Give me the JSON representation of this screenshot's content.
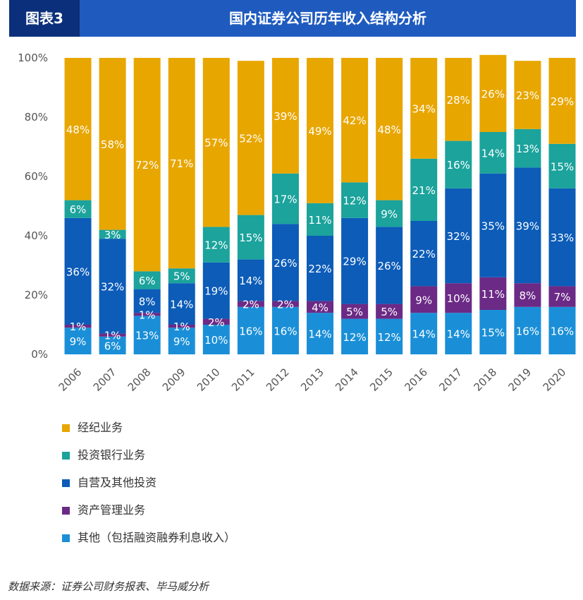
{
  "header": {
    "badge": "图表3",
    "title": "国内证券公司历年收入结构分析"
  },
  "source": "数据来源：证券公司财务报表、毕马威分析",
  "chart_data": {
    "type": "bar",
    "stacked": true,
    "categories": [
      "2006",
      "2007",
      "2008",
      "2009",
      "2010",
      "2011",
      "2012",
      "2013",
      "2014",
      "2015",
      "2016",
      "2017",
      "2018",
      "2019",
      "2020"
    ],
    "ylim": [
      0,
      100
    ],
    "yticks": [
      "0%",
      "20%",
      "40%",
      "60%",
      "80%",
      "100%"
    ],
    "grid": false,
    "legend_position": "bottom",
    "series": [
      {
        "name": "其他（包括融资融券利息收入）",
        "color": "#1a8fd8",
        "values": [
          9,
          6,
          13,
          9,
          10,
          16,
          16,
          14,
          12,
          12,
          14,
          14,
          15,
          16,
          16
        ],
        "labels": [
          "9%",
          "6%",
          "13%",
          "9%",
          "10%",
          "16%",
          "16%",
          "14%",
          "12%",
          "12%",
          "14%",
          "14%",
          "15%",
          "16%",
          "16%"
        ]
      },
      {
        "name": "资产管理业务",
        "color": "#6b2a86",
        "values": [
          1,
          1,
          1,
          1,
          2,
          2,
          2,
          4,
          5,
          5,
          9,
          10,
          11,
          8,
          7
        ],
        "labels": [
          "1%",
          "1%",
          "1%",
          "1%",
          "2%",
          "2%",
          "2%",
          "4%",
          "5%",
          "5%",
          "9%",
          "10%",
          "11%",
          "8%",
          "7%"
        ]
      },
      {
        "name": "自营及其他投资",
        "color": "#0c5cb8",
        "values": [
          36,
          32,
          8,
          14,
          19,
          14,
          26,
          22,
          29,
          26,
          22,
          32,
          35,
          39,
          33
        ],
        "labels": [
          "36%",
          "32%",
          "8%",
          "14%",
          "19%",
          "14%",
          "26%",
          "22%",
          "29%",
          "26%",
          "22%",
          "32%",
          "35%",
          "39%",
          "33%"
        ]
      },
      {
        "name": "投资银行业务",
        "color": "#1ba39c",
        "values": [
          6,
          3,
          6,
          5,
          12,
          15,
          17,
          11,
          12,
          9,
          21,
          16,
          14,
          13,
          15
        ],
        "labels": [
          "6%",
          "3%",
          "6%",
          "5%",
          "12%",
          "15%",
          "17%",
          "11%",
          "12%",
          "9%",
          "21%",
          "16%",
          "14%",
          "13%",
          "15%"
        ]
      },
      {
        "name": "经纪业务",
        "color": "#e8a600",
        "values": [
          48,
          58,
          72,
          71,
          57,
          52,
          39,
          49,
          42,
          48,
          34,
          28,
          26,
          23,
          29
        ],
        "labels": [
          "48%",
          "58%",
          "72%",
          "71%",
          "57%",
          "52%",
          "39%",
          "49%",
          "42%",
          "48%",
          "34%",
          "28%",
          "26%",
          "23%",
          "29%"
        ]
      }
    ]
  },
  "legend": [
    {
      "label": "经纪业务",
      "color": "#e8a600"
    },
    {
      "label": "投资银行业务",
      "color": "#1ba39c"
    },
    {
      "label": "自营及其他投资",
      "color": "#0c5cb8"
    },
    {
      "label": "资产管理业务",
      "color": "#6b2a86"
    },
    {
      "label": "其他（包括融资融券利息收入）",
      "color": "#1a8fd8"
    }
  ]
}
